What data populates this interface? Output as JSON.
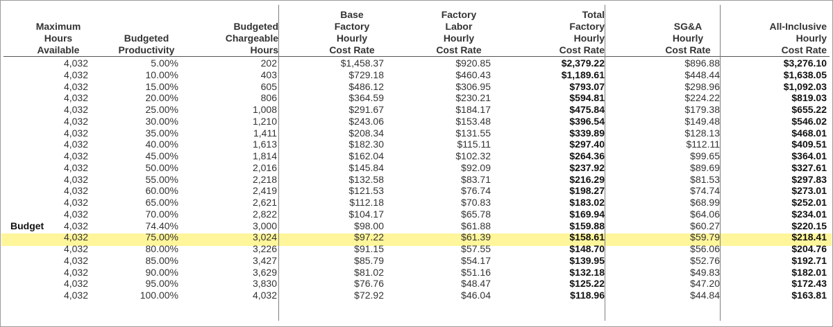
{
  "headers": [
    "Maximum\nHours\nAvailable",
    "Budgeted\nProductivity",
    "Budgeted\nChargeable\nHours",
    "Base\nFactory\nHourly\nCost Rate",
    "Factory\nLabor\nHourly\nCost Rate",
    "Total\nFactory\nHourly\nCost Rate",
    "SG&A\nHourly\nCost Rate",
    "All-Inclusive\nHourly\nCost Rate"
  ],
  "budget_label": "Budget",
  "highlight_color": "#fff59a",
  "rows": [
    [
      "4,032",
      "5.00%",
      "202",
      "$1,458.37",
      "$920.85",
      "$2,379.22",
      "$896.88",
      "$3,276.10"
    ],
    [
      "4,032",
      "10.00%",
      "403",
      "$729.18",
      "$460.43",
      "$1,189.61",
      "$448.44",
      "$1,638.05"
    ],
    [
      "4,032",
      "15.00%",
      "605",
      "$486.12",
      "$306.95",
      "$793.07",
      "$298.96",
      "$1,092.03"
    ],
    [
      "4,032",
      "20.00%",
      "806",
      "$364.59",
      "$230.21",
      "$594.81",
      "$224.22",
      "$819.03"
    ],
    [
      "4,032",
      "25.00%",
      "1,008",
      "$291.67",
      "$184.17",
      "$475.84",
      "$179.38",
      "$655.22"
    ],
    [
      "4,032",
      "30.00%",
      "1,210",
      "$243.06",
      "$153.48",
      "$396.54",
      "$149.48",
      "$546.02"
    ],
    [
      "4,032",
      "35.00%",
      "1,411",
      "$208.34",
      "$131.55",
      "$339.89",
      "$128.13",
      "$468.01"
    ],
    [
      "4,032",
      "40.00%",
      "1,613",
      "$182.30",
      "$115.11",
      "$297.40",
      "$112.11",
      "$409.51"
    ],
    [
      "4,032",
      "45.00%",
      "1,814",
      "$162.04",
      "$102.32",
      "$264.36",
      "$99.65",
      "$364.01"
    ],
    [
      "4,032",
      "50.00%",
      "2,016",
      "$145.84",
      "$92.09",
      "$237.92",
      "$89.69",
      "$327.61"
    ],
    [
      "4,032",
      "55.00%",
      "2,218",
      "$132.58",
      "$83.71",
      "$216.29",
      "$81.53",
      "$297.83"
    ],
    [
      "4,032",
      "60.00%",
      "2,419",
      "$121.53",
      "$76.74",
      "$198.27",
      "$74.74",
      "$273.01"
    ],
    [
      "4,032",
      "65.00%",
      "2,621",
      "$112.18",
      "$70.83",
      "$183.02",
      "$68.99",
      "$252.01"
    ],
    [
      "4,032",
      "70.00%",
      "2,822",
      "$104.17",
      "$65.78",
      "$169.94",
      "$64.06",
      "$234.01"
    ],
    [
      "4,032",
      "74.40%",
      "3,000",
      "$98.00",
      "$61.88",
      "$159.88",
      "$60.27",
      "$220.15"
    ],
    [
      "4,032",
      "75.00%",
      "3,024",
      "$97.22",
      "$61.39",
      "$158.61",
      "$59.79",
      "$218.41"
    ],
    [
      "4,032",
      "80.00%",
      "3,226",
      "$91.15",
      "$57.55",
      "$148.70",
      "$56.06",
      "$204.76"
    ],
    [
      "4,032",
      "85.00%",
      "3,427",
      "$85.79",
      "$54.17",
      "$139.95",
      "$52.76",
      "$192.71"
    ],
    [
      "4,032",
      "90.00%",
      "3,629",
      "$81.02",
      "$51.16",
      "$132.18",
      "$49.83",
      "$182.01"
    ],
    [
      "4,032",
      "95.00%",
      "3,830",
      "$76.76",
      "$48.47",
      "$125.22",
      "$47.20",
      "$172.43"
    ],
    [
      "4,032",
      "100.00%",
      "4,032",
      "$72.92",
      "$46.04",
      "$118.96",
      "$44.84",
      "$163.81"
    ]
  ]
}
